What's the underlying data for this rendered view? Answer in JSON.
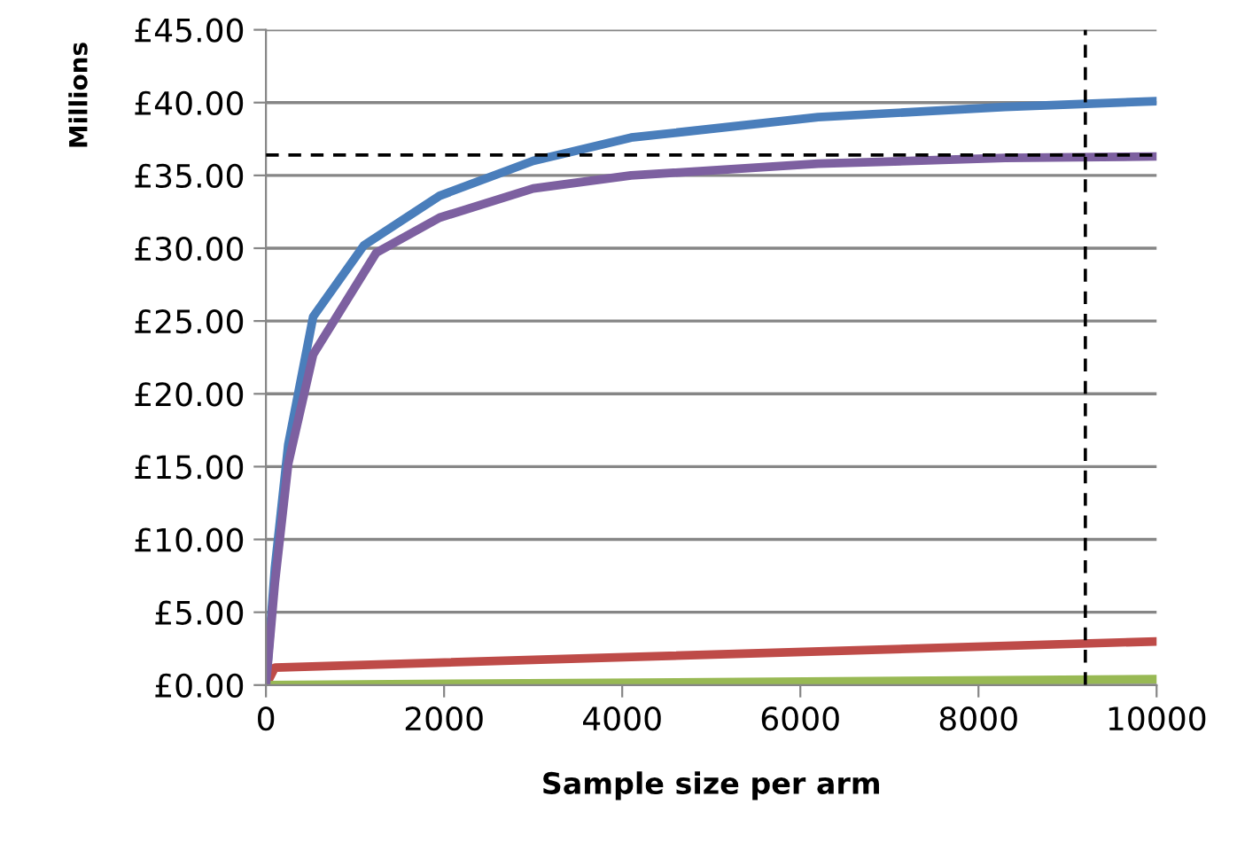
{
  "chart_data": {
    "type": "line",
    "xlabel": "Sample size per arm",
    "ylabel": "Millions",
    "xlim": [
      0,
      10000
    ],
    "xticks": [
      0,
      2000,
      4000,
      6000,
      8000,
      10000
    ],
    "ylim": [
      0,
      45
    ],
    "yticks": [
      {
        "value": 0,
        "label": "£0.00"
      },
      {
        "value": 5,
        "label": "£5.00"
      },
      {
        "value": 10,
        "label": "£10.00"
      },
      {
        "value": 15,
        "label": "£15.00"
      },
      {
        "value": 20,
        "label": "£20.00"
      },
      {
        "value": 25,
        "label": "£25.00"
      },
      {
        "value": 30,
        "label": "£30.00"
      },
      {
        "value": 35,
        "label": "£35.00"
      },
      {
        "value": 40,
        "label": "£40.00"
      },
      {
        "value": 45,
        "label": "£45.00"
      }
    ],
    "grid": "y",
    "legend": false,
    "marker": "none",
    "line_style": "solid",
    "series": [
      {
        "color": "#4a7ebb",
        "x": [
          0,
          100,
          250,
          530,
          1100,
          1950,
          3000,
          4100,
          6200,
          8300,
          10000
        ],
        "values": [
          0,
          8,
          16.5,
          25.3,
          30.2,
          33.6,
          36.0,
          37.6,
          39.0,
          39.7,
          40.1
        ]
      },
      {
        "color": "#be4b48",
        "x": [
          0,
          100,
          10000
        ],
        "values": [
          0,
          1.2,
          3.0
        ]
      },
      {
        "color": "#98b954",
        "x": [
          0,
          10000
        ],
        "values": [
          0,
          0.4
        ]
      },
      {
        "color": "#7d60a0",
        "x": [
          0,
          100,
          250,
          530,
          1240,
          1950,
          3000,
          4100,
          6200,
          8300,
          10000
        ],
        "values": [
          0,
          7,
          15.2,
          22.7,
          29.7,
          32.1,
          34.1,
          35.0,
          35.8,
          36.2,
          36.3
        ]
      }
    ],
    "ref_lines": [
      {
        "axis": "y",
        "value": 36.4,
        "color": "#000000",
        "line_style": "dashed"
      },
      {
        "axis": "x",
        "value": 9200,
        "color": "#000000",
        "line_style": "dashed"
      }
    ]
  }
}
